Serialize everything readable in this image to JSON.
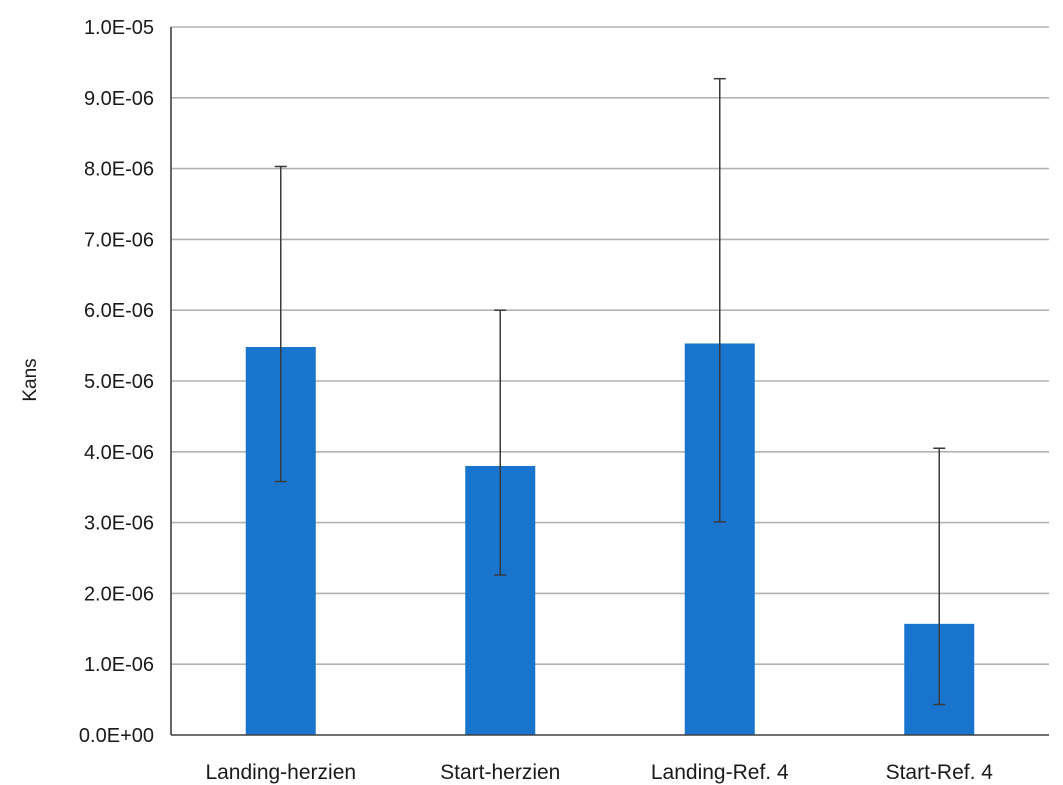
{
  "chart_data": {
    "type": "bar",
    "title": "",
    "xlabel": "",
    "ylabel": "Kans",
    "categories": [
      "Landing-herzien",
      "Start-herzien",
      "Landing-Ref. 4",
      "Start-Ref. 4"
    ],
    "values": [
      5.48e-06,
      3.8e-06,
      5.53e-06,
      1.57e-06
    ],
    "error_low": [
      3.58e-06,
      2.26e-06,
      3.01e-06,
      4.3e-07
    ],
    "error_high": [
      8.03e-06,
      6e-06,
      9.27e-06,
      4.05e-06
    ],
    "ylim": [
      0,
      1e-05
    ],
    "yticks": [
      0,
      1e-06,
      2e-06,
      3e-06,
      4e-06,
      5e-06,
      6e-06,
      7e-06,
      8e-06,
      9e-06,
      1e-05
    ],
    "ytick_labels": [
      "0.0E+00",
      "1.0E-06",
      "2.0E-06",
      "3.0E-06",
      "4.0E-06",
      "5.0E-06",
      "6.0E-06",
      "7.0E-06",
      "8.0E-06",
      "9.0E-06",
      "1.0E-05"
    ],
    "grid": true,
    "bar_color": "#1874CD",
    "error_color": "#3a3a3a",
    "grid_color": "#b3b3b3",
    "axis_color": "#404040"
  }
}
